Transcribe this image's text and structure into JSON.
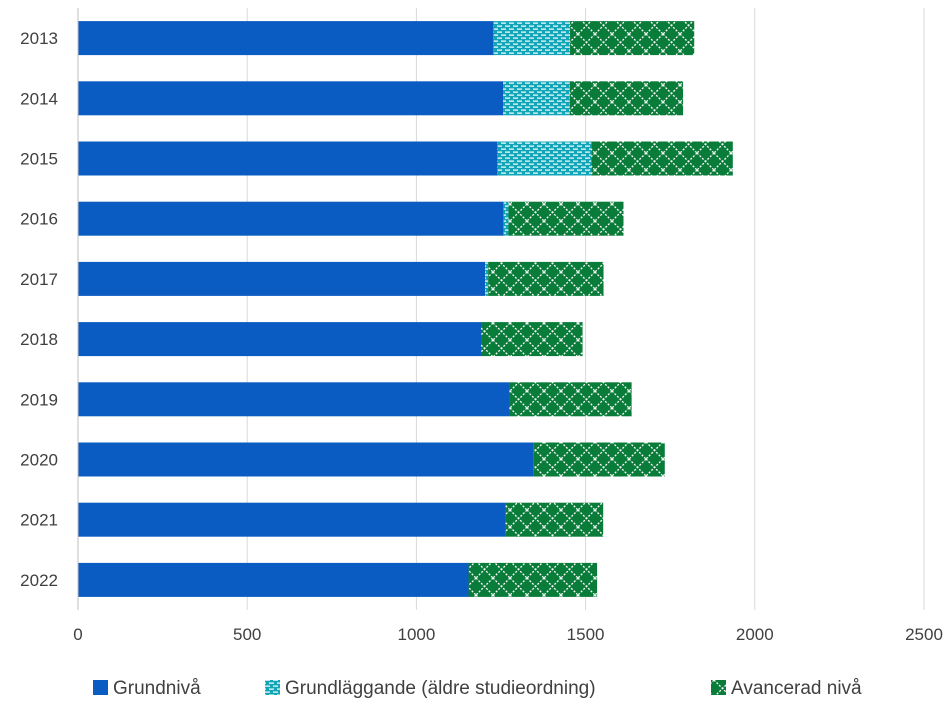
{
  "chart_data": {
    "type": "bar",
    "orientation": "horizontal",
    "stacked": true,
    "categories": [
      "2013",
      "2014",
      "2015",
      "2016",
      "2017",
      "2018",
      "2019",
      "2020",
      "2021",
      "2022"
    ],
    "series": [
      {
        "name": "Grundnivå",
        "color": "#0a5cc2",
        "pattern": "solid",
        "values": [
          1228,
          1256,
          1240,
          1258,
          1203,
          1191,
          1275,
          1347,
          1262,
          1154
        ]
      },
      {
        "name": "Grundläggande (äldre studieordning)",
        "color": "#12a5b8",
        "pattern": "dashes",
        "values": [
          226,
          197,
          277,
          14,
          9,
          0,
          0,
          0,
          0,
          0
        ]
      },
      {
        "name": "Avancerad nivå",
        "color": "#0a7c3a",
        "pattern": "crosshatch",
        "values": [
          367,
          335,
          418,
          340,
          341,
          300,
          361,
          387,
          290,
          380
        ]
      }
    ],
    "xlim": [
      0,
      2500
    ],
    "xticks": [
      "0",
      "500",
      "1000",
      "1500",
      "2000",
      "2500"
    ],
    "xtick_values": [
      0,
      500,
      1000,
      1500,
      2000,
      2500
    ],
    "grid": true,
    "legend_position": "bottom"
  }
}
